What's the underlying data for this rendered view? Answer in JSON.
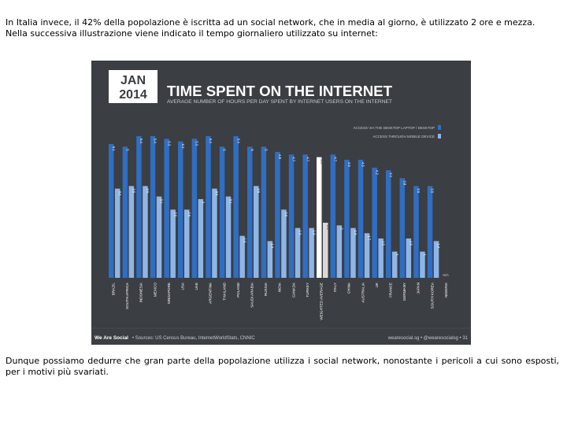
{
  "intro": {
    "line1": "In Italia invece, il 42% della popolazione è iscritta ad un social network, che in media al giorno, è utilizzato 2 ore e mezza.",
    "line2": "Nella successiva illustrazione viene indicato il tempo giornaliero utilizzato su internet:"
  },
  "infographic": {
    "date_month": "JAN",
    "date_year": "2014",
    "title": "TIME SPENT ON THE INTERNET",
    "subtitle": "AVERAGE NUMBER OF HOURS PER DAY SPENT BY INTERNET USERS ON THE INTERNET",
    "footer_left": "We Are Social",
    "footer_sources": "• Sources: US Census Bureau, InternetWorldStats, CNNIC",
    "footer_right": "wearesocial.sg • @wearesocialsg • 31"
  },
  "chart_data": {
    "type": "bar",
    "categories": [
      "BRAZIL",
      "SOUTH AFRICA",
      "INDONESIA",
      "MEXICO",
      "SINGAPORE",
      "USA",
      "UAE",
      "ARGENTINA",
      "THAILAND",
      "POLAND",
      "SAUDI ARABIA",
      "RUSSIA",
      "INDIA",
      "CANADA",
      "TURKEY",
      "WEIGHTED AVERAGE",
      "ITALY",
      "CHINA",
      "AUSTRALIA",
      "UK",
      "FRANCE",
      "GERMANY",
      "JAPAN",
      "SOUTH KOREA",
      "NIGERIA"
    ],
    "series": [
      {
        "name": "ACCESS VIA THE DESKTOP LAPTOP / DESKTOP",
        "values": [
          5.1,
          5.0,
          5.4,
          5.4,
          5.3,
          5.2,
          5.3,
          5.4,
          5.0,
          5.4,
          5.0,
          5.0,
          4.8,
          4.7,
          4.7,
          4.6,
          4.7,
          4.5,
          4.5,
          4.2,
          4.1,
          3.8,
          3.5,
          3.5,
          null
        ]
      },
      {
        "name": "ACCESS THROUGH MOBILE DEVICE",
        "values": [
          3.4,
          3.5,
          3.5,
          3.1,
          2.6,
          2.6,
          3.0,
          3.4,
          3.1,
          1.6,
          3.5,
          1.4,
          2.6,
          1.9,
          1.9,
          2.1,
          2.0,
          1.9,
          1.7,
          1.5,
          1.0,
          1.5,
          1.0,
          1.4,
          null
        ]
      }
    ],
    "highlight_category": "WEIGHTED AVERAGE",
    "no_data_label": "N/A"
  },
  "outro": {
    "text": "Dunque possiamo dedurre che gran parte della popolazione utilizza i social network, nonostante i pericoli a cui sono esposti, per i motivi più svariati."
  }
}
